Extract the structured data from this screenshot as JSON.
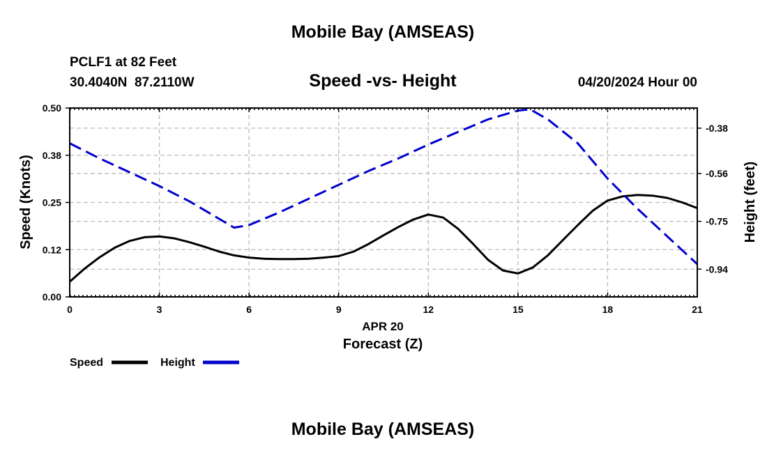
{
  "page_title": "Mobile Bay (AMSEAS)",
  "footer_title": "Mobile Bay (AMSEAS)",
  "station": {
    "name_line": "PCLF1 at 82 Feet",
    "coords_line": "30.4040N  87.2110W"
  },
  "run_time": "04/20/2024 Hour 00",
  "chart_data": {
    "type": "line",
    "title": "Speed -vs- Height",
    "xlabel": "Forecast (Z)",
    "x_date_label": "APR 20",
    "ylabel_left": "Speed (Knots)",
    "ylabel_right": "Height (feet)",
    "xlim": [
      0,
      21
    ],
    "ylim_left": [
      0.0,
      0.5
    ],
    "ylim_right": [
      -1.05,
      -0.3
    ],
    "x_ticks": [
      0,
      3,
      6,
      9,
      12,
      15,
      18,
      21
    ],
    "x_tick_labels": [
      "0",
      "3",
      "6",
      "9",
      "12",
      "15",
      "18",
      "21"
    ],
    "y_left_ticks": [
      0.0,
      0.125,
      0.25,
      0.375,
      0.5
    ],
    "y_left_tick_labels": [
      "0.00",
      "0.12",
      "0.25",
      "0.38",
      "0.50"
    ],
    "y_right_ticks": [
      -0.38,
      -0.56,
      -0.75,
      -0.94
    ],
    "y_right_tick_labels": [
      "-0.38",
      "-0.56",
      "-0.75",
      "-0.94"
    ],
    "grid": true,
    "legend_position": "bottom-left",
    "series": [
      {
        "name": "Speed",
        "axis": "left",
        "color": "#000000",
        "style": "solid",
        "x": [
          0,
          0.5,
          1,
          1.5,
          2,
          2.5,
          3,
          3.5,
          4,
          4.5,
          5,
          5.5,
          6,
          6.5,
          7,
          7.5,
          8,
          8.5,
          9,
          9.5,
          10,
          10.5,
          11,
          11.5,
          12,
          12.5,
          13,
          13.5,
          14,
          14.5,
          15,
          15.5,
          16,
          16.5,
          17,
          17.5,
          18,
          18.5,
          19,
          19.5,
          20,
          20.5,
          21
        ],
        "values": [
          0.04,
          0.075,
          0.105,
          0.13,
          0.148,
          0.158,
          0.16,
          0.155,
          0.145,
          0.133,
          0.12,
          0.11,
          0.104,
          0.101,
          0.1,
          0.1,
          0.101,
          0.104,
          0.108,
          0.12,
          0.14,
          0.163,
          0.185,
          0.205,
          0.218,
          0.21,
          0.18,
          0.14,
          0.098,
          0.07,
          0.062,
          0.078,
          0.11,
          0.15,
          0.19,
          0.228,
          0.255,
          0.266,
          0.27,
          0.268,
          0.262,
          0.25,
          0.235
        ]
      },
      {
        "name": "Height",
        "axis": "right",
        "color": "#0000cc",
        "style": "dashed",
        "x": [
          0,
          1,
          2,
          3,
          4,
          5,
          5.5,
          6,
          7,
          8,
          9,
          10,
          11,
          12,
          13,
          14,
          15,
          15.4,
          16,
          17,
          18,
          19,
          20,
          21
        ],
        "values": [
          -0.44,
          -0.5,
          -0.555,
          -0.61,
          -0.67,
          -0.74,
          -0.775,
          -0.765,
          -0.715,
          -0.66,
          -0.605,
          -0.55,
          -0.5,
          -0.445,
          -0.395,
          -0.345,
          -0.31,
          -0.305,
          -0.345,
          -0.44,
          -0.58,
          -0.7,
          -0.81,
          -0.92
        ]
      }
    ]
  }
}
